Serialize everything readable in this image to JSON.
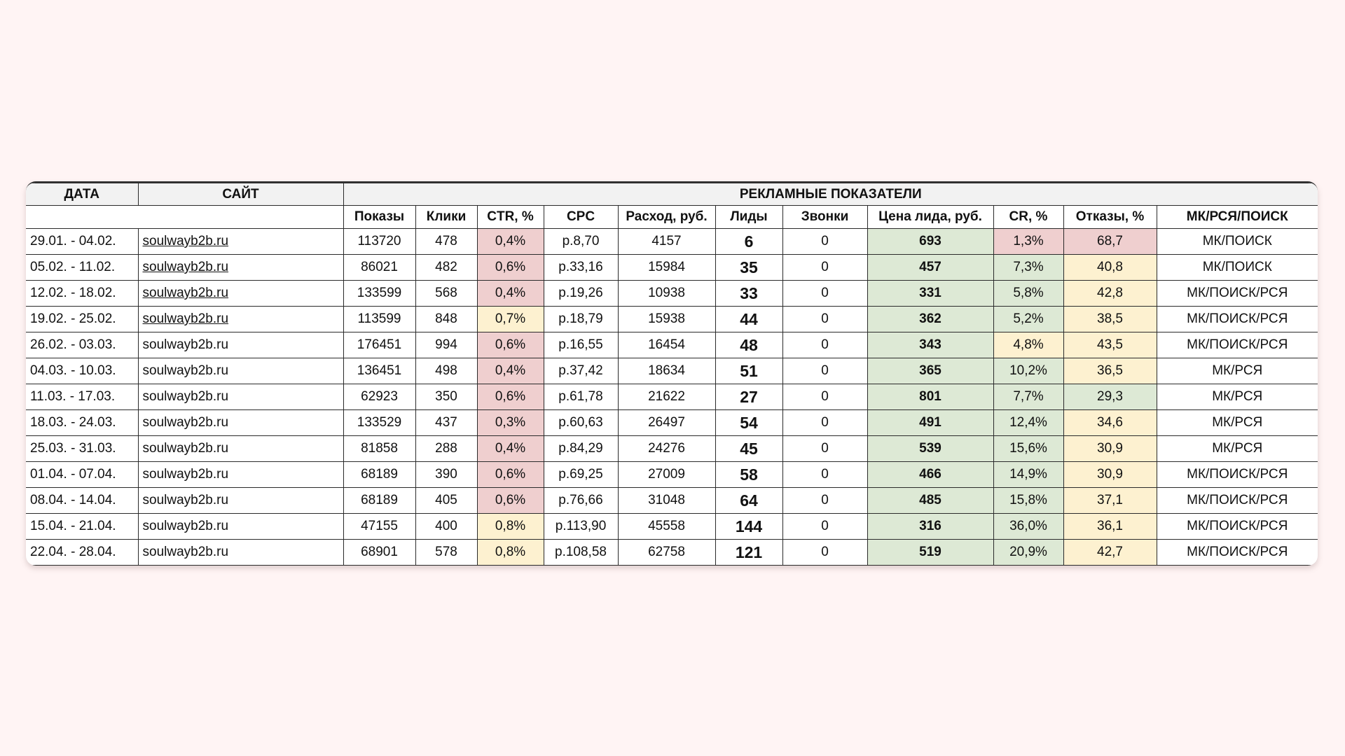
{
  "colors": {
    "pink": "#efcfcf",
    "yellow": "#fdf1d0",
    "green": "#dde9d5",
    "background": "#fff4f4"
  },
  "header": {
    "date": "ДАТА",
    "site": "САЙТ",
    "group": "РЕКЛАМНЫЕ ПОКАЗАТЕЛИ"
  },
  "columns": [
    "Показы",
    "Клики",
    "CTR, %",
    "CPC",
    "Расход, руб.",
    "Лиды",
    "Звонки",
    "Цена лида, руб.",
    "CR, %",
    "Отказы, %",
    "МК/РСЯ/ПОИСК"
  ],
  "rows": [
    {
      "date": "29.01. - 04.02.",
      "site": "soulwayb2b.ru",
      "link": true,
      "shows": "113720",
      "clicks": "478",
      "ctr": "0,4%",
      "ctr_c": "pink",
      "cpc": "р.8,70",
      "spend": "4157",
      "leads": "6",
      "calls": "0",
      "price": "693",
      "cr": "1,3%",
      "cr_c": "pink",
      "bounce": "68,7",
      "bounce_c": "pink",
      "channel": "МК/ПОИСК"
    },
    {
      "date": "05.02. - 11.02.",
      "site": "soulwayb2b.ru",
      "link": true,
      "shows": "86021",
      "clicks": "482",
      "ctr": "0,6%",
      "ctr_c": "pink",
      "cpc": "р.33,16",
      "spend": "15984",
      "leads": "35",
      "calls": "0",
      "price": "457",
      "cr": "7,3%",
      "cr_c": "green",
      "bounce": "40,8",
      "bounce_c": "yellow",
      "channel": "МК/ПОИСК"
    },
    {
      "date": "12.02. - 18.02.",
      "site": "soulwayb2b.ru",
      "link": true,
      "shows": "133599",
      "clicks": "568",
      "ctr": "0,4%",
      "ctr_c": "pink",
      "cpc": "р.19,26",
      "spend": "10938",
      "leads": "33",
      "calls": "0",
      "price": "331",
      "cr": "5,8%",
      "cr_c": "green",
      "bounce": "42,8",
      "bounce_c": "yellow",
      "channel": "МК/ПОИСК/РСЯ"
    },
    {
      "date": "19.02. - 25.02.",
      "site": "soulwayb2b.ru",
      "link": true,
      "shows": "113599",
      "clicks": "848",
      "ctr": "0,7%",
      "ctr_c": "yellow",
      "cpc": "р.18,79",
      "spend": "15938",
      "leads": "44",
      "calls": "0",
      "price": "362",
      "cr": "5,2%",
      "cr_c": "green",
      "bounce": "38,5",
      "bounce_c": "yellow",
      "channel": "МК/ПОИСК/РСЯ"
    },
    {
      "date": "26.02. - 03.03.",
      "site": "soulwayb2b.ru",
      "link": false,
      "shows": "176451",
      "clicks": "994",
      "ctr": "0,6%",
      "ctr_c": "pink",
      "cpc": "р.16,55",
      "spend": "16454",
      "leads": "48",
      "calls": "0",
      "price": "343",
      "cr": "4,8%",
      "cr_c": "yellow",
      "bounce": "43,5",
      "bounce_c": "yellow",
      "channel": "МК/ПОИСК/РСЯ"
    },
    {
      "date": "04.03. - 10.03.",
      "site": "soulwayb2b.ru",
      "link": false,
      "shows": "136451",
      "clicks": "498",
      "ctr": "0,4%",
      "ctr_c": "pink",
      "cpc": "р.37,42",
      "spend": "18634",
      "leads": "51",
      "calls": "0",
      "price": "365",
      "cr": "10,2%",
      "cr_c": "green",
      "bounce": "36,5",
      "bounce_c": "yellow",
      "channel": "МК/РСЯ"
    },
    {
      "date": "11.03. - 17.03.",
      "site": "soulwayb2b.ru",
      "link": false,
      "shows": "62923",
      "clicks": "350",
      "ctr": "0,6%",
      "ctr_c": "pink",
      "cpc": "р.61,78",
      "spend": "21622",
      "leads": "27",
      "calls": "0",
      "price": "801",
      "cr": "7,7%",
      "cr_c": "green",
      "bounce": "29,3",
      "bounce_c": "green",
      "channel": "МК/РСЯ"
    },
    {
      "date": "18.03. - 24.03.",
      "site": "soulwayb2b.ru",
      "link": false,
      "shows": "133529",
      "clicks": "437",
      "ctr": "0,3%",
      "ctr_c": "pink",
      "cpc": "р.60,63",
      "spend": "26497",
      "leads": "54",
      "calls": "0",
      "price": "491",
      "cr": "12,4%",
      "cr_c": "green",
      "bounce": "34,6",
      "bounce_c": "yellow",
      "channel": "МК/РСЯ"
    },
    {
      "date": "25.03. - 31.03.",
      "site": "soulwayb2b.ru",
      "link": false,
      "shows": "81858",
      "clicks": "288",
      "ctr": "0,4%",
      "ctr_c": "pink",
      "cpc": "р.84,29",
      "spend": "24276",
      "leads": "45",
      "calls": "0",
      "price": "539",
      "cr": "15,6%",
      "cr_c": "green",
      "bounce": "30,9",
      "bounce_c": "yellow",
      "channel": "МК/РСЯ"
    },
    {
      "date": "01.04. - 07.04.",
      "site": "soulwayb2b.ru",
      "link": false,
      "shows": "68189",
      "clicks": "390",
      "ctr": "0,6%",
      "ctr_c": "pink",
      "cpc": "р.69,25",
      "spend": "27009",
      "leads": "58",
      "calls": "0",
      "price": "466",
      "cr": "14,9%",
      "cr_c": "green",
      "bounce": "30,9",
      "bounce_c": "yellow",
      "channel": "МК/ПОИСК/РСЯ"
    },
    {
      "date": "08.04. - 14.04.",
      "site": "soulwayb2b.ru",
      "link": false,
      "shows": "68189",
      "clicks": "405",
      "ctr": "0,6%",
      "ctr_c": "pink",
      "cpc": "р.76,66",
      "spend": "31048",
      "leads": "64",
      "calls": "0",
      "price": "485",
      "cr": "15,8%",
      "cr_c": "green",
      "bounce": "37,1",
      "bounce_c": "yellow",
      "channel": "МК/ПОИСК/РСЯ"
    },
    {
      "date": "15.04. - 21.04.",
      "site": "soulwayb2b.ru",
      "link": false,
      "shows": "47155",
      "clicks": "400",
      "ctr": "0,8%",
      "ctr_c": "yellow",
      "cpc": "р.113,90",
      "spend": "45558",
      "leads": "144",
      "calls": "0",
      "price": "316",
      "cr": "36,0%",
      "cr_c": "green",
      "bounce": "36,1",
      "bounce_c": "yellow",
      "channel": "МК/ПОИСК/РСЯ"
    },
    {
      "date": "22.04. - 28.04.",
      "site": "soulwayb2b.ru",
      "link": false,
      "shows": "68901",
      "clicks": "578",
      "ctr": "0,8%",
      "ctr_c": "yellow",
      "cpc": "р.108,58",
      "spend": "62758",
      "leads": "121",
      "calls": "0",
      "price": "519",
      "cr": "20,9%",
      "cr_c": "green",
      "bounce": "42,7",
      "bounce_c": "yellow",
      "channel": "МК/ПОИСК/РСЯ"
    }
  ]
}
